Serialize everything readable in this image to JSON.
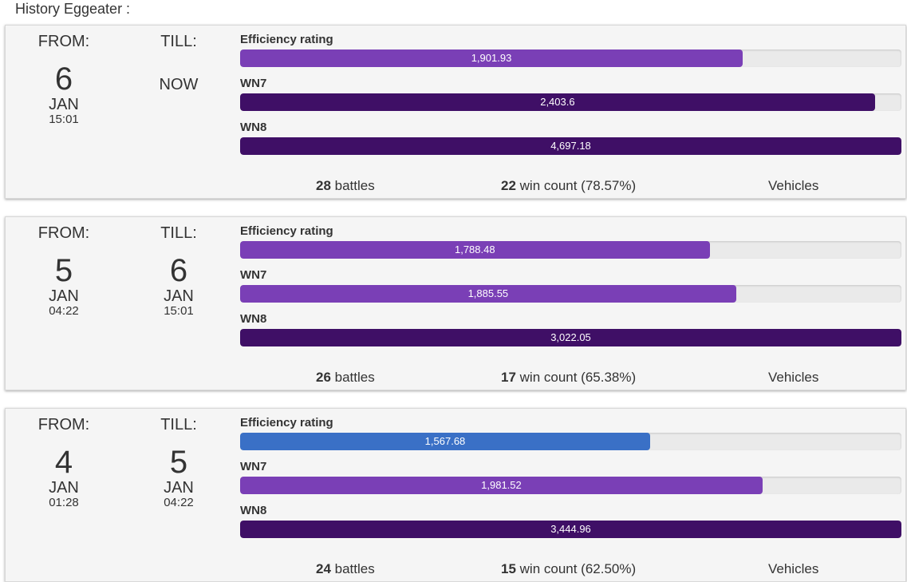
{
  "title": "History Eggeater :",
  "colors": {
    "purple": "#7a3fb6",
    "dark_purple": "#3f0f66",
    "blue": "#3a70c6"
  },
  "periods": [
    {
      "from": {
        "label": "FROM:",
        "day": "6",
        "month": "JAN",
        "time": "15:01"
      },
      "till": {
        "label": "TILL:",
        "now": "NOW"
      },
      "metrics": [
        {
          "name": "Efficiency rating",
          "value": "1,901.93",
          "fill_pct": 76,
          "color": "#7a3fb6"
        },
        {
          "name": "WN7",
          "value": "2,403.6",
          "fill_pct": 96,
          "color": "#3f0f66"
        },
        {
          "name": "WN8",
          "value": "4,697.18",
          "fill_pct": 100,
          "color": "#3f0f66"
        }
      ],
      "battles": {
        "count": "28",
        "label": " battles"
      },
      "wins": {
        "count": "22",
        "label": " win count (78.57%)"
      },
      "vehicles": "Vehicles"
    },
    {
      "from": {
        "label": "FROM:",
        "day": "5",
        "month": "JAN",
        "time": "04:22"
      },
      "till": {
        "label": "TILL:",
        "day": "6",
        "month": "JAN",
        "time": "15:01"
      },
      "metrics": [
        {
          "name": "Efficiency rating",
          "value": "1,788.48",
          "fill_pct": 71,
          "color": "#7a3fb6"
        },
        {
          "name": "WN7",
          "value": "1,885.55",
          "fill_pct": 75,
          "color": "#7a3fb6"
        },
        {
          "name": "WN8",
          "value": "3,022.05",
          "fill_pct": 100,
          "color": "#3f0f66"
        }
      ],
      "battles": {
        "count": "26",
        "label": " battles"
      },
      "wins": {
        "count": "17",
        "label": " win count (65.38%)"
      },
      "vehicles": "Vehicles"
    },
    {
      "from": {
        "label": "FROM:",
        "day": "4",
        "month": "JAN",
        "time": "01:28"
      },
      "till": {
        "label": "TILL:",
        "day": "5",
        "month": "JAN",
        "time": "04:22"
      },
      "metrics": [
        {
          "name": "Efficiency rating",
          "value": "1,567.68",
          "fill_pct": 62,
          "color": "#3a70c6"
        },
        {
          "name": "WN7",
          "value": "1,981.52",
          "fill_pct": 79,
          "color": "#7a3fb6"
        },
        {
          "name": "WN8",
          "value": "3,444.96",
          "fill_pct": 100,
          "color": "#3f0f66"
        }
      ],
      "battles": {
        "count": "24",
        "label": " battles"
      },
      "wins": {
        "count": "15",
        "label": " win count (62.50%)"
      },
      "vehicles": "Vehicles"
    }
  ]
}
